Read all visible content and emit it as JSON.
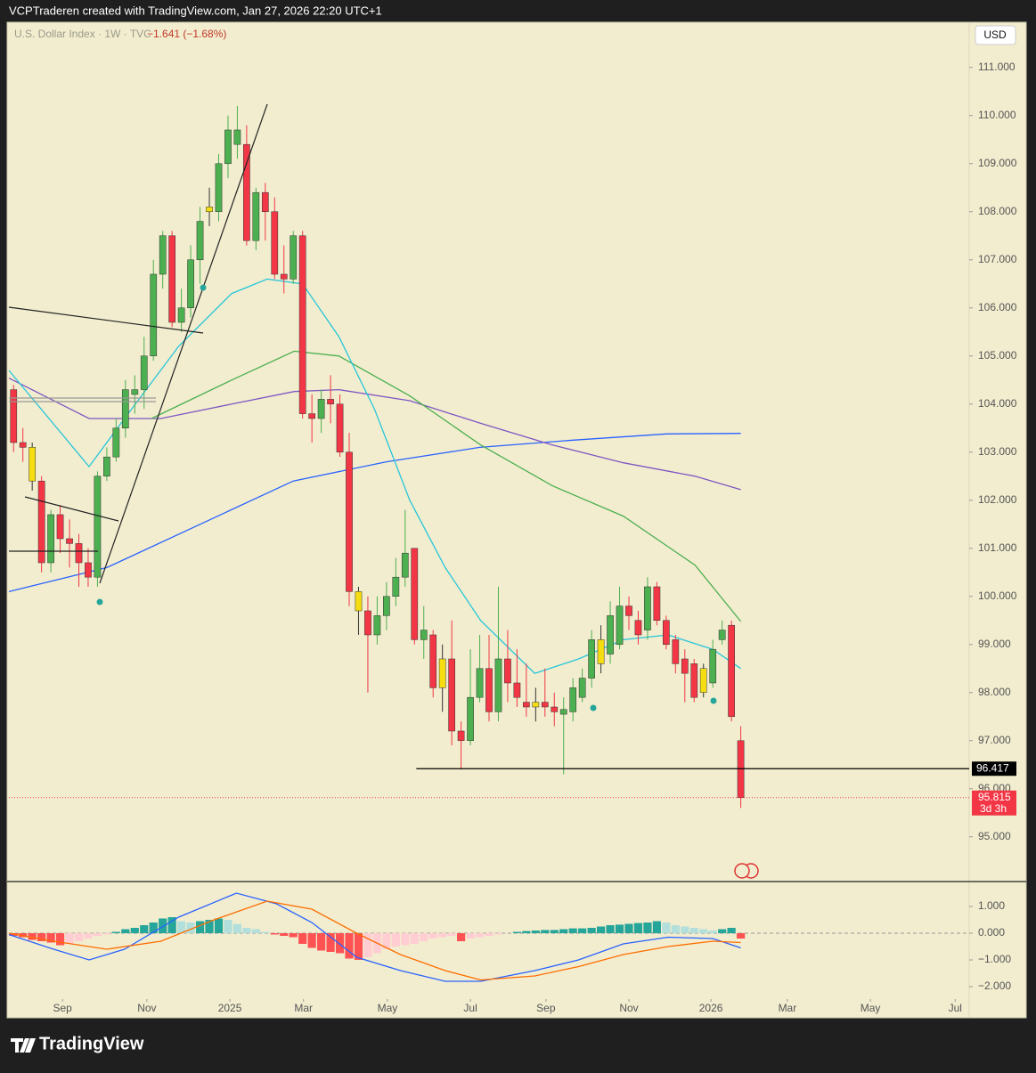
{
  "header": {
    "title": "VCPTraderen created with TradingView.com, Jan 27, 2026 22:20 UTC+1"
  },
  "footer": {
    "brand": "TradingView"
  },
  "chart_data": [
    {
      "type": "candlestick",
      "title": "U.S. Dollar Index · 1W · TVC",
      "change": "−1.641 (−1.68%)",
      "currency": "USD",
      "up_color": "#4caf50",
      "down_color": "#f23645",
      "highlight": {
        "color": "#f5dd12",
        "indices": [
          2,
          21,
          37,
          46,
          56,
          63,
          74
        ]
      },
      "open": [
        104.3,
        103.2,
        103.1,
        102.4,
        100.7,
        101.7,
        101.2,
        101.1,
        100.7,
        100.4,
        102.5,
        102.9,
        103.5,
        104.2,
        104.3,
        105.0,
        106.7,
        107.5,
        105.7,
        106.0,
        107.0,
        108.1,
        108.0,
        109.0,
        109.4,
        109.4,
        107.4,
        108.4,
        108.0,
        106.7,
        106.6,
        107.5,
        103.8,
        103.7,
        104.1,
        104.0,
        103.0,
        100.1,
        99.7,
        99.2,
        99.6,
        100.0,
        100.4,
        101.0,
        99.1,
        99.2,
        98.1,
        98.7,
        97.2,
        97.0,
        97.9,
        98.5,
        97.6,
        98.7,
        98.2,
        97.8,
        97.7,
        97.8,
        97.7,
        97.55,
        97.6,
        97.9,
        98.3,
        98.6,
        98.8,
        99.0,
        99.8,
        99.5,
        99.3,
        100.2,
        99.5,
        99.1,
        98.7,
        98.6,
        98.5,
        98.2,
        99.1,
        99.4,
        97.0
      ],
      "high": [
        104.4,
        103.5,
        103.2,
        102.5,
        101.8,
        101.9,
        101.6,
        101.3,
        101.0,
        102.6,
        103.1,
        103.7,
        104.5,
        104.6,
        105.4,
        107.0,
        107.6,
        107.6,
        106.4,
        107.3,
        108.1,
        108.5,
        109.2,
        110.0,
        110.2,
        109.8,
        108.5,
        108.6,
        108.3,
        107.3,
        107.6,
        107.6,
        104.2,
        104.3,
        104.6,
        104.2,
        103.4,
        100.2,
        100.0,
        100.0,
        100.3,
        100.8,
        101.8,
        101.0,
        99.8,
        99.3,
        99.0,
        99.5,
        97.4,
        98.9,
        99.2,
        99.2,
        100.2,
        99.3,
        98.9,
        98.6,
        98.1,
        98.5,
        98.0,
        97.9,
        98.3,
        98.5,
        99.3,
        99.4,
        99.9,
        100.2,
        100.0,
        99.7,
        100.4,
        100.3,
        99.6,
        99.2,
        98.9,
        98.7,
        98.6,
        99.1,
        99.5,
        99.5,
        97.3
      ],
      "low": [
        103.0,
        102.8,
        102.2,
        100.5,
        100.5,
        100.9,
        100.6,
        100.2,
        100.2,
        100.2,
        102.4,
        102.8,
        103.3,
        103.8,
        103.9,
        104.9,
        106.4,
        105.6,
        105.5,
        105.8,
        106.5,
        107.7,
        107.8,
        108.7,
        109.1,
        107.3,
        107.2,
        107.4,
        106.6,
        106.3,
        106.5,
        103.7,
        103.2,
        103.4,
        103.6,
        102.9,
        99.8,
        99.2,
        98.0,
        99.0,
        99.3,
        99.8,
        100.2,
        99.0,
        98.7,
        97.9,
        97.6,
        96.9,
        96.4,
        96.9,
        97.8,
        97.4,
        97.4,
        97.8,
        97.7,
        97.5,
        97.4,
        97.5,
        97.3,
        96.3,
        97.4,
        97.8,
        98.1,
        98.4,
        98.6,
        98.9,
        99.3,
        99.0,
        99.1,
        99.4,
        98.9,
        98.4,
        97.8,
        97.8,
        97.9,
        98.1,
        99.0,
        97.4,
        95.6
      ],
      "close": [
        103.2,
        103.1,
        102.4,
        100.7,
        101.7,
        101.2,
        101.1,
        100.7,
        100.4,
        102.5,
        102.9,
        103.5,
        104.3,
        104.3,
        105.0,
        106.7,
        107.5,
        105.7,
        106.0,
        107.0,
        107.8,
        108.0,
        109.0,
        109.7,
        109.7,
        107.4,
        108.4,
        108.0,
        106.7,
        106.6,
        107.5,
        103.8,
        103.7,
        104.1,
        104.0,
        103.0,
        100.1,
        99.7,
        99.2,
        99.6,
        100.0,
        100.4,
        100.9,
        99.1,
        99.3,
        98.1,
        98.7,
        97.2,
        97.0,
        97.9,
        98.5,
        97.6,
        98.7,
        98.2,
        97.9,
        97.7,
        97.8,
        97.7,
        97.6,
        97.65,
        98.1,
        98.3,
        99.1,
        99.1,
        99.6,
        99.8,
        99.6,
        99.2,
        100.2,
        99.5,
        99.0,
        98.6,
        98.4,
        97.9,
        98.0,
        98.9,
        99.3,
        97.5,
        95.815
      ],
      "lines": [
        {
          "color": "#2962ff",
          "x": [
            -0.5,
            10,
            20,
            30,
            40,
            50,
            60,
            70,
            78
          ],
          "values": [
            100.1,
            100.6,
            101.5,
            102.4,
            102.8,
            103.1,
            103.25,
            103.38,
            103.39
          ]
        },
        {
          "color": "#7e57c2",
          "x": [
            -0.5,
            8.1,
            15.8,
            23.4,
            30.1,
            34.9,
            42.5,
            50.1,
            57.8,
            65.4,
            73.1,
            78.0
          ],
          "values": [
            104.54,
            103.7,
            103.7,
            104.0,
            104.26,
            104.3,
            104.07,
            103.6,
            103.15,
            102.78,
            102.5,
            102.22
          ]
        },
        {
          "color": "#4caf50",
          "x": [
            14.8,
            23.4,
            30.1,
            34.9,
            42.5,
            50.1,
            57.8,
            65.4,
            73.1,
            78.0
          ],
          "values": [
            103.7,
            104.5,
            105.1,
            105.0,
            104.17,
            103.15,
            102.3,
            101.67,
            100.65,
            99.48
          ]
        },
        {
          "color": "#26c6da",
          "x": [
            -0.5,
            8.1,
            11.9,
            17.7,
            23.4,
            27.2,
            31.0,
            34.9,
            38.7,
            42.5,
            46.3,
            50.1,
            55.9,
            60.6,
            65.4,
            70.2,
            75.0,
            78.0
          ],
          "values": [
            104.7,
            102.7,
            103.7,
            105.2,
            106.3,
            106.6,
            106.5,
            105.4,
            103.9,
            102.0,
            100.6,
            99.5,
            98.4,
            98.7,
            99.1,
            99.2,
            98.9,
            98.5
          ]
        }
      ],
      "level": {
        "value": 96.417,
        "x_start": 43.2,
        "color": "#000000"
      },
      "last_price": {
        "value": 95.815,
        "countdown": "3d 3h"
      },
      "xlim": [
        -0.5,
        102.5
      ],
      "xticks": [
        {
          "value": 5.25,
          "label": "Sep"
        },
        {
          "value": 14.3,
          "label": "Nov"
        },
        {
          "value": 23.2,
          "label": "2025"
        },
        {
          "value": 31.1,
          "label": "Mar"
        },
        {
          "value": 40.1,
          "label": "May"
        },
        {
          "value": 49.0,
          "label": "Jul"
        },
        {
          "value": 57.1,
          "label": "Sep"
        },
        {
          "value": 66.0,
          "label": "Nov"
        },
        {
          "value": 74.8,
          "label": "2026"
        },
        {
          "value": 83.0,
          "label": "Mar"
        },
        {
          "value": 91.9,
          "label": "May"
        },
        {
          "value": 101.0,
          "label": "Jul"
        }
      ],
      "ylim": [
        94.07,
        112.07
      ],
      "yticks": [
        {
          "value": 95,
          "label": "95.000"
        },
        {
          "value": 96,
          "label": "96.000"
        },
        {
          "value": 97,
          "label": "97.000"
        },
        {
          "value": 98,
          "label": "98.000"
        },
        {
          "value": 99,
          "label": "99.000"
        },
        {
          "value": 100,
          "label": "100.000"
        },
        {
          "value": 101,
          "label": "101.000"
        },
        {
          "value": 102,
          "label": "102.000"
        },
        {
          "value": 103,
          "label": "103.000"
        },
        {
          "value": 104,
          "label": "104.000"
        },
        {
          "value": 105,
          "label": "105.000"
        },
        {
          "value": 106,
          "label": "106.000"
        },
        {
          "value": 107,
          "label": "107.000"
        },
        {
          "value": 108,
          "label": "108.000"
        },
        {
          "value": 109,
          "label": "109.000"
        },
        {
          "value": 110,
          "label": "110.000"
        },
        {
          "value": 111,
          "label": "111.000"
        }
      ]
    },
    {
      "type": "bar",
      "colors": {
        "up_rising": "#26a69a",
        "up_falling": "#b2dfdb",
        "down_falling": "#ff5252",
        "down_rising": "#ffcdd2"
      },
      "values": [
        -0.1,
        -0.15,
        -0.25,
        -0.3,
        -0.35,
        -0.45,
        -0.4,
        -0.3,
        -0.2,
        -0.1,
        -0.05,
        0.05,
        0.15,
        0.2,
        0.3,
        0.4,
        0.55,
        0.6,
        0.45,
        0.4,
        0.45,
        0.5,
        0.55,
        0.5,
        0.35,
        0.2,
        0.15,
        0.05,
        -0.05,
        -0.1,
        -0.15,
        -0.4,
        -0.55,
        -0.65,
        -0.7,
        -0.75,
        -0.95,
        -1.0,
        -0.9,
        -0.75,
        -0.6,
        -0.5,
        -0.45,
        -0.4,
        -0.3,
        -0.2,
        -0.15,
        -0.1,
        -0.3,
        -0.2,
        -0.15,
        -0.1,
        -0.05,
        0.0,
        0.05,
        0.08,
        0.1,
        0.12,
        0.12,
        0.15,
        0.18,
        0.18,
        0.2,
        0.25,
        0.3,
        0.32,
        0.35,
        0.38,
        0.4,
        0.45,
        0.4,
        0.3,
        0.25,
        0.2,
        0.15,
        0.1,
        0.15,
        0.2,
        -0.2
      ],
      "lines": [
        {
          "color": "#2962ff",
          "x": [
            -0.5,
            4.3,
            8.1,
            11.9,
            17.7,
            23.9,
            28.2,
            32.0,
            36.8,
            41.5,
            46.3,
            50.1,
            55.9,
            60.6,
            65.4,
            70.2,
            75.0,
            78.0
          ],
          "values": [
            -0.05,
            -0.6,
            -1.0,
            -0.6,
            0.6,
            1.5,
            1.1,
            0.4,
            -0.9,
            -1.4,
            -1.8,
            -1.8,
            -1.4,
            -1.0,
            -0.4,
            -0.15,
            -0.2,
            -0.55
          ]
        },
        {
          "color": "#ff6d00",
          "x": [
            -0.5,
            4.3,
            10.0,
            15.8,
            21.5,
            27.2,
            32.0,
            36.8,
            41.5,
            46.3,
            50.1,
            55.9,
            60.6,
            65.4,
            70.2,
            75.0,
            78.0
          ],
          "values": [
            0.0,
            -0.3,
            -0.6,
            -0.3,
            0.5,
            1.2,
            0.9,
            0.0,
            -0.8,
            -1.4,
            -1.75,
            -1.6,
            -1.25,
            -0.8,
            -0.5,
            -0.3,
            -0.35
          ]
        }
      ],
      "xlim": [
        -0.5,
        102.5
      ],
      "ylim": [
        -2.467,
        1.933
      ],
      "yticks": [
        {
          "value": 1,
          "label": "1.000"
        },
        {
          "value": 0,
          "label": "0.000"
        },
        {
          "value": -1,
          "label": "−1.000"
        },
        {
          "value": -2,
          "label": "−2.000"
        }
      ]
    }
  ]
}
